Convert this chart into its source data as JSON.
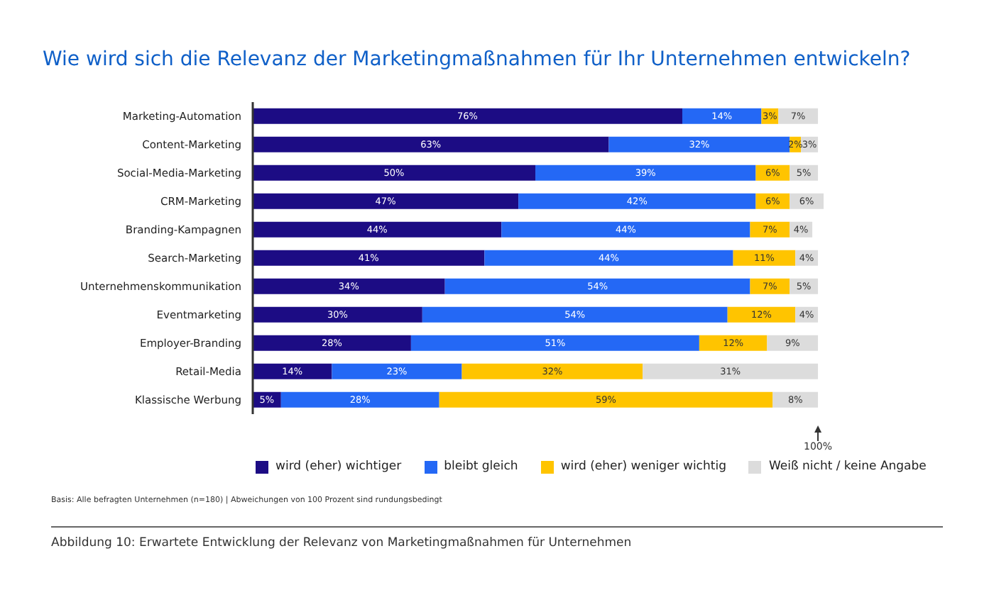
{
  "chart_data": {
    "type": "bar",
    "orientation": "horizontal",
    "stacked": true,
    "title": "Wie wird sich die Relevanz der Marketingmaßnahmen für Ihr Unternehmen entwickeln?",
    "categories": [
      "Marketing-Automation",
      "Content-Marketing",
      "Social-Media-Marketing",
      "CRM-Marketing",
      "Branding-Kampagnen",
      "Search-Marketing",
      "Unternehmenskommunikation",
      "Eventmarketing",
      "Employer-Branding",
      "Retail-Media",
      "Klassische Werbung"
    ],
    "series": [
      {
        "name": "wird (eher) wichtiger",
        "color": "#1c0c84",
        "values": [
          76,
          63,
          50,
          47,
          44,
          41,
          34,
          30,
          28,
          14,
          5
        ],
        "value_labels": [
          "76%",
          "63%",
          "50%",
          "47%",
          "44%",
          "41%",
          "34%",
          "30%",
          "28%",
          "14%",
          "5%"
        ]
      },
      {
        "name": "bleibt gleich",
        "color": "#2468f5",
        "values": [
          14,
          32,
          39,
          42,
          44,
          44,
          54,
          54,
          51,
          23,
          28
        ],
        "value_labels": [
          "14%",
          "32%",
          "39%",
          "42%",
          "44%",
          "44%",
          "54%",
          "54%",
          "51%",
          "23%",
          "28%"
        ]
      },
      {
        "name": "wird (eher) weniger wichtig",
        "color": "#ffc400",
        "values": [
          3,
          2,
          6,
          6,
          7,
          11,
          7,
          12,
          12,
          32,
          59
        ],
        "value_labels": [
          "3%",
          "2%",
          "6%",
          "6%",
          "7%",
          "11%",
          "7%",
          "12%",
          "12%",
          "32%",
          "59%"
        ]
      },
      {
        "name": "Weiß nicht / keine Angabe",
        "color": "#dcdcdc",
        "values": [
          7,
          3,
          5,
          6,
          4,
          4,
          5,
          4,
          9,
          31,
          8
        ],
        "value_labels": [
          "7%",
          "3%",
          "5%",
          "6%",
          "4%",
          "4%",
          "5%",
          "4%",
          "9%",
          "31%",
          "8%"
        ]
      }
    ],
    "xlim": [
      0,
      101
    ],
    "xticks": [
      {
        "value": 100,
        "label": "100%"
      }
    ],
    "legend": "bottom",
    "grid": false,
    "annotations": [
      "Basis: Alle befragten Unternehmen (n=180) | Abweichungen von 100 Prozent sind rundungsbedingt",
      "Abbildung 10: Erwartete Entwicklung der Relevanz von Marketingmaßnahmen für Unternehmen"
    ]
  }
}
